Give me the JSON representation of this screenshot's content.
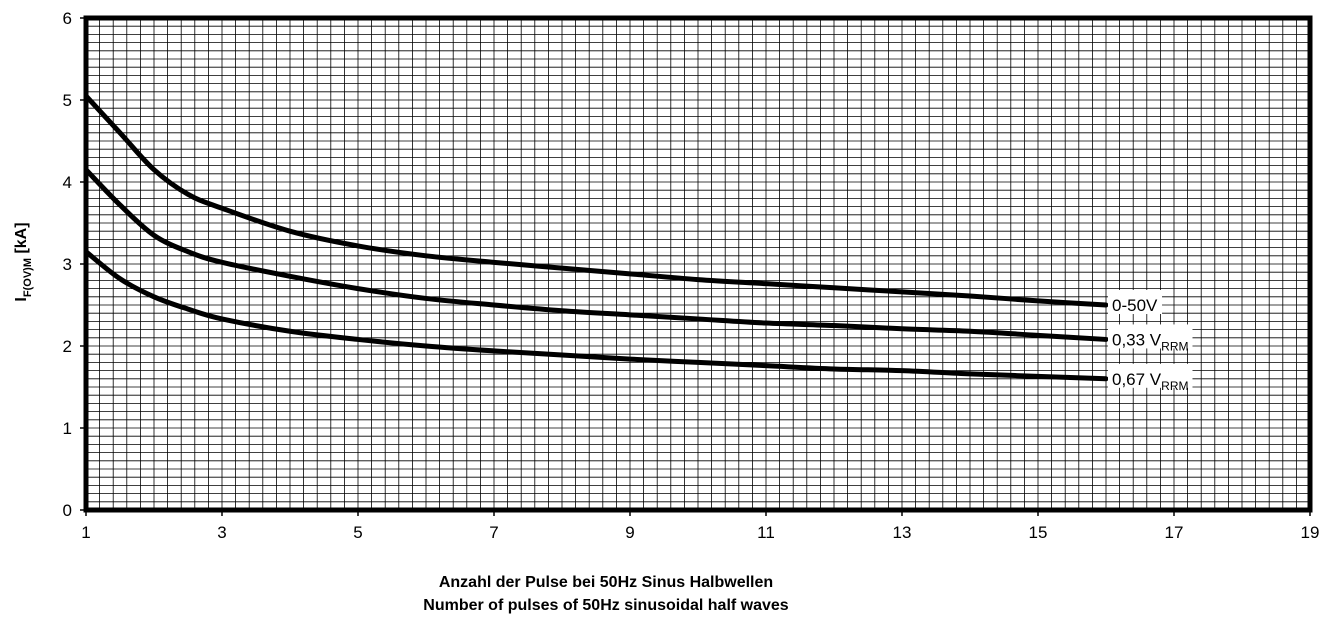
{
  "chart_data": {
    "type": "line",
    "xlabel_line1": "Anzahl der Pulse bei 50Hz Sinus Halbwellen",
    "xlabel_line2": "Number of pulses of 50Hz sinusoidal half waves",
    "ylabel_main": "I",
    "ylabel_sub": "F(OV)M",
    "ylabel_unit": " [kA]",
    "xlim": [
      1,
      19
    ],
    "ylim": [
      0,
      6
    ],
    "x_ticks": [
      "1",
      "3",
      "5",
      "7",
      "9",
      "11",
      "13",
      "15",
      "17",
      "19"
    ],
    "y_ticks": [
      "0",
      "1",
      "2",
      "3",
      "4",
      "5",
      "6"
    ],
    "grid": true,
    "series": [
      {
        "label_main": "0-50V",
        "label_sub": "",
        "x": [
          1,
          1.5,
          2,
          2.5,
          3,
          4,
          5,
          6,
          7,
          8,
          9,
          10,
          11,
          12,
          13,
          14,
          15,
          16
        ],
        "y": [
          5.05,
          4.6,
          4.15,
          3.85,
          3.68,
          3.4,
          3.22,
          3.1,
          3.02,
          2.95,
          2.88,
          2.81,
          2.76,
          2.71,
          2.66,
          2.61,
          2.55,
          2.5
        ]
      },
      {
        "label_main": "0,33 V",
        "label_sub": "RRM",
        "x": [
          1,
          1.5,
          2,
          2.5,
          3,
          4,
          5,
          6,
          7,
          8,
          9,
          10,
          11,
          12,
          13,
          14,
          15,
          16
        ],
        "y": [
          4.15,
          3.72,
          3.35,
          3.15,
          3.02,
          2.85,
          2.7,
          2.58,
          2.5,
          2.43,
          2.38,
          2.33,
          2.28,
          2.25,
          2.21,
          2.18,
          2.13,
          2.08
        ]
      },
      {
        "label_main": "0,67 V",
        "label_sub": "RRM",
        "x": [
          1,
          1.5,
          2,
          2.5,
          3,
          4,
          5,
          6,
          7,
          8,
          9,
          10,
          11,
          12,
          13,
          14,
          15,
          16
        ],
        "y": [
          3.15,
          2.82,
          2.6,
          2.45,
          2.33,
          2.18,
          2.08,
          2.0,
          1.94,
          1.89,
          1.84,
          1.8,
          1.76,
          1.72,
          1.7,
          1.66,
          1.63,
          1.6
        ]
      }
    ]
  }
}
